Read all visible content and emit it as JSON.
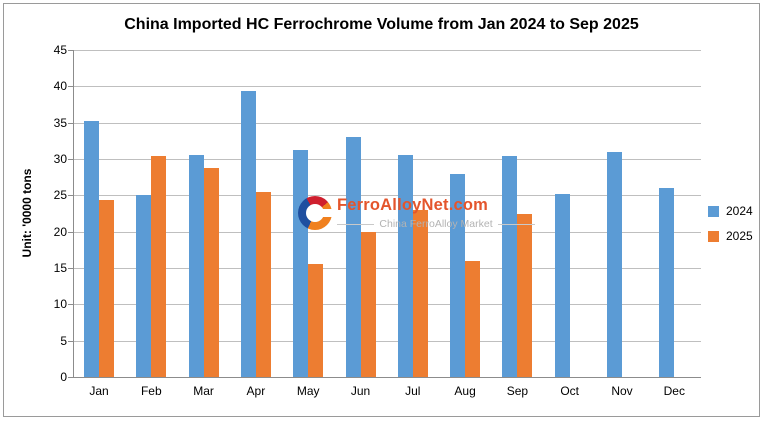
{
  "chart": {
    "title": "China Imported HC Ferrochrome Volume from Jan 2024 to Sep 2025",
    "unit_label": "Unit: '0000 tons"
  },
  "watermark": {
    "brand": "FerroAlloyNet.com",
    "tagline": "China FerroAlloy Market"
  },
  "legend": {
    "items": [
      {
        "label": "2024",
        "color": "#5B9BD5"
      },
      {
        "label": "2025",
        "color": "#ED7D31"
      }
    ]
  },
  "colors": {
    "bar_2024": "#5B9BD5",
    "bar_2025": "#ED7D31",
    "gridline": "#BFBFBF",
    "axis": "#8C8C8C",
    "border": "#9A9A9A",
    "watermark_brand": "#E4552C",
    "watermark_tagline": "#B3B3B3"
  },
  "chart_data": {
    "type": "bar",
    "title": "China Imported HC Ferrochrome Volume from Jan 2024 to Sep 2025",
    "categories": [
      "Jan",
      "Feb",
      "Mar",
      "Apr",
      "May",
      "Jun",
      "Jul",
      "Aug",
      "Sep",
      "Oct",
      "Nov",
      "Dec"
    ],
    "series": [
      {
        "name": "2024",
        "color": "#5B9BD5",
        "values": [
          35.2,
          25.0,
          30.6,
          39.4,
          31.2,
          33.0,
          30.6,
          28.0,
          30.4,
          25.2,
          31.0,
          26.0
        ]
      },
      {
        "name": "2025",
        "color": "#ED7D31",
        "values": [
          24.3,
          30.4,
          28.8,
          25.4,
          15.5,
          20.0,
          23.0,
          16.0,
          22.4,
          null,
          null,
          null
        ]
      }
    ],
    "xlabel": "",
    "ylabel": "Unit: '0000 tons",
    "ylim": [
      0,
      45
    ],
    "ytick_step": 5,
    "grid": true,
    "legend_position": "right"
  }
}
